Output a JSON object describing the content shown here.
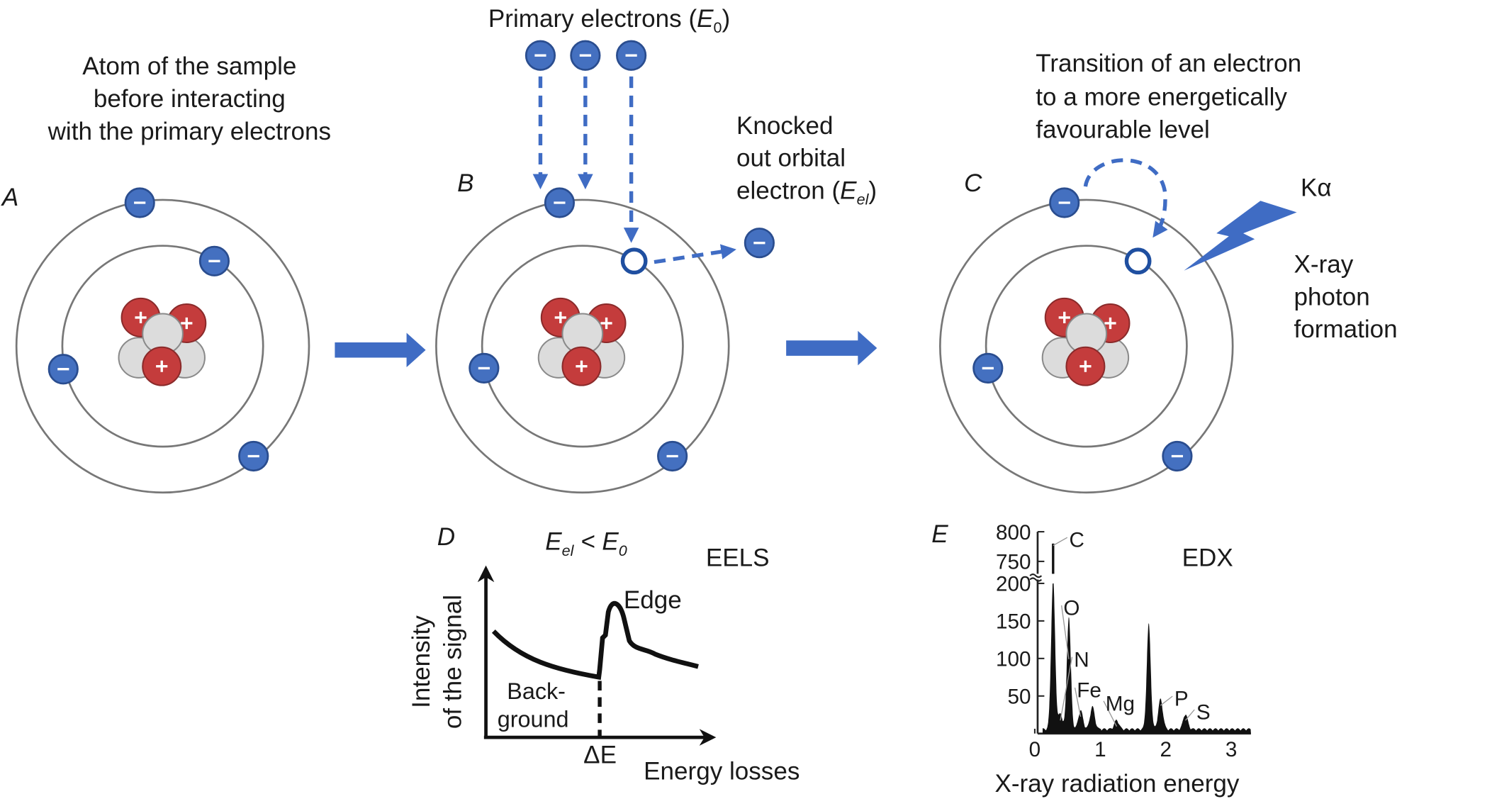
{
  "colors": {
    "electron": "#4470c0",
    "electron_stroke": "#2a4d8f",
    "proton": "#c43c3c",
    "neutron": "#dcdcdc",
    "arrow": "#3f6cc4",
    "text": "#1a1a1a"
  },
  "panelA": {
    "letter": "A",
    "caption": [
      "Atom of the sample",
      "before interacting",
      "with the primary electrons"
    ]
  },
  "panelB": {
    "letter": "B",
    "primary_label": "Primary electrons (",
    "primary_sym": "E",
    "primary_sub": "0",
    "primary_close": ")",
    "knocked": [
      "Knocked",
      "out orbital",
      "electron ("
    ],
    "knocked_sym": "E",
    "knocked_sub": "el",
    "knocked_close": ")"
  },
  "panelC": {
    "letter": "C",
    "transition": [
      "Transition of an electron",
      "to a more energetically",
      "favourable level"
    ],
    "line_label": "Kα",
    "photon": [
      "X-ray",
      "photon",
      "formation"
    ]
  },
  "panelD": {
    "letter": "D",
    "condition_a": "E",
    "condition_a_sub": "el",
    "condition_op": " < ",
    "condition_b": "E",
    "condition_b_sub": "0",
    "title": "EELS",
    "edge": "Edge",
    "background": [
      "Back-",
      "ground"
    ],
    "delta": "ΔE",
    "xlabel": "Energy losses",
    "ylabel": [
      "Intensity",
      "of the signal"
    ]
  },
  "chart_data": {
    "type": "area",
    "title": "EDX",
    "panel_letter": "E",
    "xlabel": "X-ray radiation energy",
    "ylabel": "",
    "xlim": [
      0,
      3.3
    ],
    "x_ticks": [
      "0",
      "1",
      "2",
      "3"
    ],
    "y_ticks": [
      "50",
      "100",
      "150",
      "200",
      "750",
      "800"
    ],
    "y_axis_break": [
      200,
      750
    ],
    "grid": false,
    "peaks": [
      {
        "label": "C",
        "energy": 0.28,
        "counts": 780
      },
      {
        "label": "N",
        "energy": 0.39,
        "counts": 20
      },
      {
        "label": "O",
        "energy": 0.52,
        "counts": 150
      },
      {
        "label": "Fe",
        "energy": 0.7,
        "counts": 25
      },
      {
        "label": "",
        "energy": 0.88,
        "counts": 30
      },
      {
        "label": "Mg",
        "energy": 1.25,
        "counts": 12
      },
      {
        "label": "",
        "energy": 1.74,
        "counts": 140
      },
      {
        "label": "P",
        "energy": 1.92,
        "counts": 40
      },
      {
        "label": "S",
        "energy": 2.3,
        "counts": 20
      }
    ]
  }
}
